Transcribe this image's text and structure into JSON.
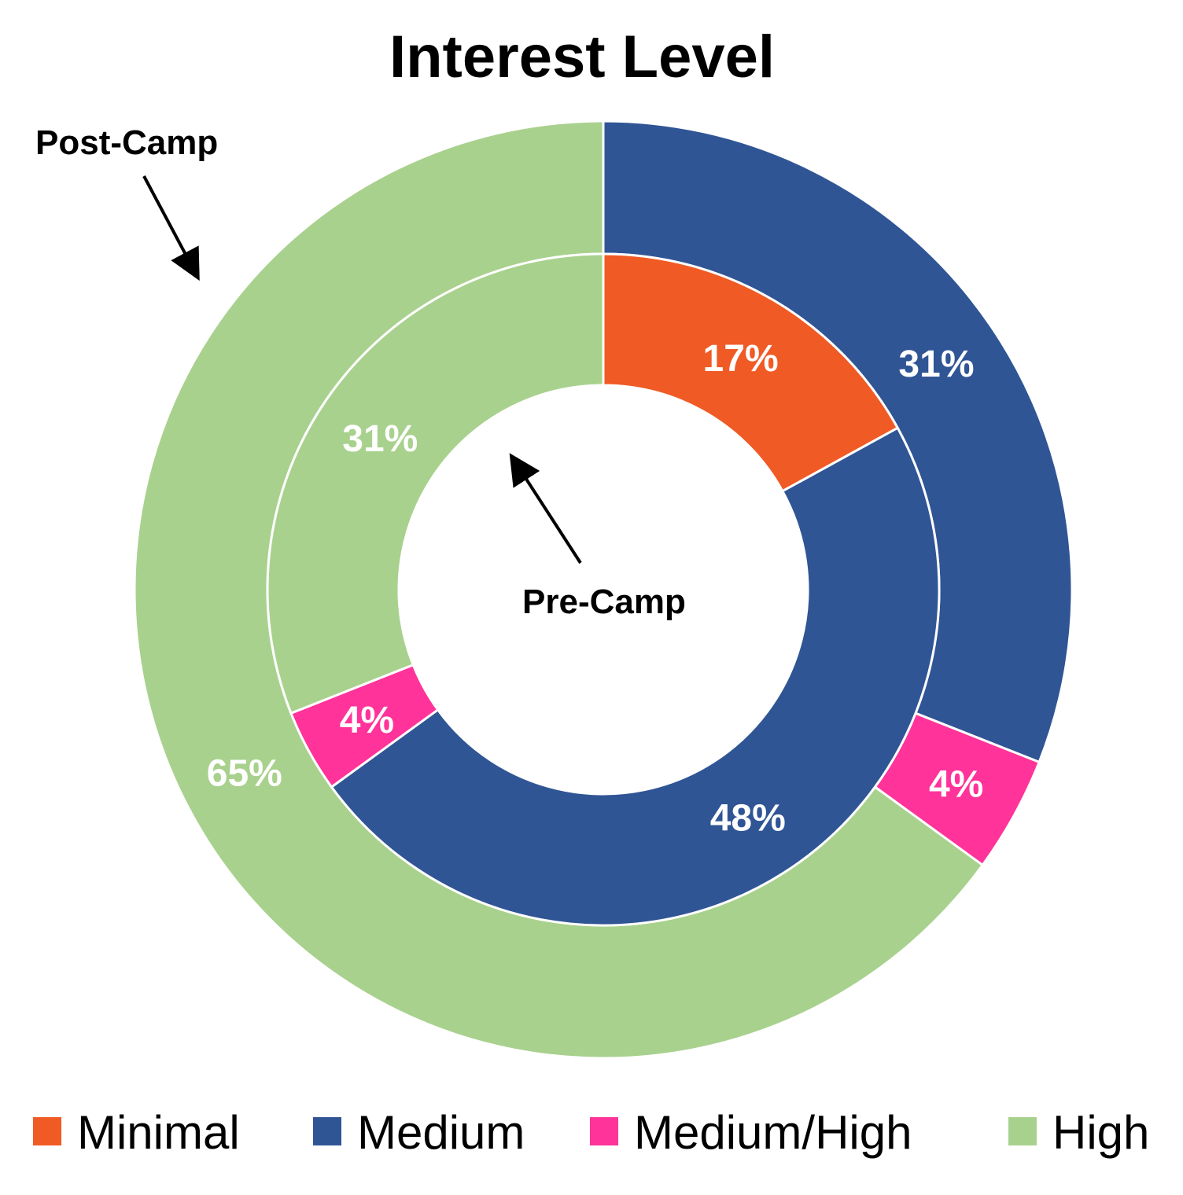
{
  "chart_data": {
    "type": "pie",
    "subtype": "doughnut",
    "title": "Interest Level",
    "categories": [
      "Minimal",
      "Medium",
      "Medium/High",
      "High"
    ],
    "colors": {
      "Minimal": "#f05a24",
      "Medium": "#305595",
      "Medium/High": "#ff3399",
      "High": "#a9d18e"
    },
    "series": [
      {
        "name": "Pre-Camp",
        "ring": "inner",
        "values": [
          17,
          48,
          4,
          31
        ],
        "labels": [
          "17%",
          "48%",
          "4%",
          "31%"
        ]
      },
      {
        "name": "Post-Camp",
        "ring": "outer",
        "values": [
          0,
          31,
          4,
          65
        ],
        "labels": [
          "",
          "31%",
          "4%",
          "65%"
        ]
      }
    ],
    "legend": {
      "position": "bottom",
      "items": [
        "Minimal",
        "Medium",
        "Medium/High",
        "High"
      ]
    }
  }
}
